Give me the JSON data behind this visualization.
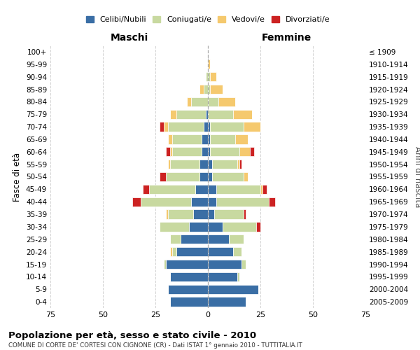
{
  "age_groups": [
    "0-4",
    "5-9",
    "10-14",
    "15-19",
    "20-24",
    "25-29",
    "30-34",
    "35-39",
    "40-44",
    "45-49",
    "50-54",
    "55-59",
    "60-64",
    "65-69",
    "70-74",
    "75-79",
    "80-84",
    "85-89",
    "90-94",
    "95-99",
    "100+"
  ],
  "birth_years": [
    "2005-2009",
    "2000-2004",
    "1995-1999",
    "1990-1994",
    "1985-1989",
    "1980-1984",
    "1975-1979",
    "1970-1974",
    "1965-1969",
    "1960-1964",
    "1955-1959",
    "1950-1954",
    "1945-1949",
    "1940-1944",
    "1935-1939",
    "1930-1934",
    "1925-1929",
    "1920-1924",
    "1915-1919",
    "1910-1914",
    "≤ 1909"
  ],
  "maschi": {
    "celibi": [
      18,
      19,
      18,
      20,
      15,
      13,
      9,
      7,
      8,
      6,
      4,
      4,
      3,
      3,
      2,
      1,
      0,
      0,
      0,
      0,
      0
    ],
    "coniugati": [
      0,
      0,
      0,
      1,
      2,
      5,
      14,
      12,
      24,
      22,
      16,
      14,
      14,
      14,
      17,
      14,
      8,
      2,
      1,
      0,
      0
    ],
    "vedovi": [
      0,
      0,
      0,
      0,
      1,
      0,
      0,
      1,
      0,
      0,
      0,
      1,
      1,
      2,
      2,
      3,
      2,
      2,
      0,
      0,
      0
    ],
    "divorziati": [
      0,
      0,
      0,
      0,
      0,
      0,
      0,
      0,
      4,
      3,
      3,
      0,
      2,
      0,
      2,
      0,
      0,
      0,
      0,
      0,
      0
    ]
  },
  "femmine": {
    "nubili": [
      18,
      24,
      14,
      16,
      12,
      10,
      7,
      3,
      4,
      4,
      2,
      2,
      1,
      1,
      1,
      0,
      0,
      0,
      0,
      0,
      0
    ],
    "coniugate": [
      0,
      0,
      1,
      2,
      4,
      7,
      16,
      14,
      25,
      21,
      15,
      12,
      14,
      12,
      16,
      12,
      5,
      1,
      1,
      0,
      0
    ],
    "vedove": [
      0,
      0,
      0,
      0,
      0,
      0,
      0,
      0,
      0,
      1,
      2,
      1,
      5,
      6,
      8,
      9,
      8,
      6,
      3,
      1,
      0
    ],
    "divorziate": [
      0,
      0,
      0,
      0,
      0,
      0,
      2,
      1,
      3,
      2,
      0,
      1,
      2,
      0,
      0,
      0,
      0,
      0,
      0,
      0,
      0
    ]
  },
  "colors": {
    "celibi": "#3a6ea5",
    "coniugati": "#c8d9a0",
    "vedovi": "#f5c96e",
    "divorziati": "#cc2222"
  },
  "xlim": 75,
  "title": "Popolazione per età, sesso e stato civile - 2010",
  "subtitle": "COMUNE DI CORTE DE' CORTESI CON CIGNONE (CR) - Dati ISTAT 1° gennaio 2010 - TUTTITALIA.IT",
  "ylabel_left": "Fasce di età",
  "ylabel_right": "Anni di nascita",
  "xlabel_maschi": "Maschi",
  "xlabel_femmine": "Femmine",
  "legend_labels": [
    "Celibi/Nubili",
    "Coniugati/e",
    "Vedovi/e",
    "Divorziati/e"
  ],
  "bg_color": "#ffffff",
  "grid_color": "#cccccc"
}
